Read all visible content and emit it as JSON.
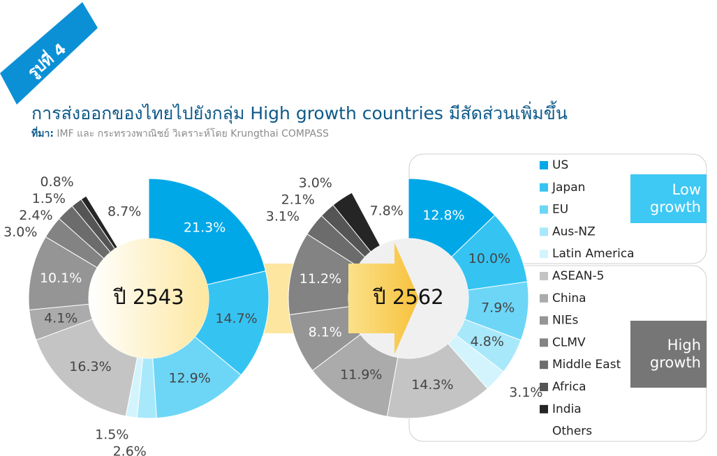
{
  "header": {
    "badge": "รูปที่ 4",
    "title": "การส่งออกของไทยไปยังกลุ่ม High growth countries มีสัดส่วนเพิ่มขึ้น",
    "source_label": "ที่มา:",
    "source": "IMF และ กระทรวงพาณิชย์ วิเคราะห์โดย Krungthai COMPASS"
  },
  "chart_data": [
    {
      "type": "donut",
      "center_label": "ปี 2543",
      "categories": [
        "US",
        "Japan",
        "EU",
        "Aus-NZ",
        "Latin America",
        "ASEAN-5",
        "China",
        "NIEs",
        "CLMV",
        "Middle East",
        "Africa",
        "India",
        "Others"
      ],
      "values": [
        21.3,
        14.7,
        12.9,
        2.6,
        1.5,
        16.3,
        4.1,
        10.1,
        3.0,
        2.4,
        1.5,
        0.8,
        8.7
      ],
      "value_labels": [
        "21.3%",
        "14.7%",
        "12.9%",
        "2.6%",
        "1.5%",
        "16.3%",
        "4.1%",
        "10.1%",
        "3.0%",
        "2.4%",
        "1.5%",
        "0.8%",
        "8.7%"
      ],
      "colors": [
        "#00a8e8",
        "#35c4f2",
        "#6dd6f7",
        "#a8e8fb",
        "#d3f4fd",
        "#c4c4c4",
        "#ababab",
        "#959595",
        "#838383",
        "#6c6c6c",
        "#555555",
        "#252525",
        "#ffffff"
      ]
    },
    {
      "type": "donut",
      "center_label": "ปี 2562",
      "categories": [
        "US",
        "Japan",
        "EU",
        "Aus-NZ",
        "Latin America",
        "ASEAN-5",
        "China",
        "NIEs",
        "CLMV",
        "Middle East",
        "Africa",
        "India",
        "Others"
      ],
      "values": [
        12.8,
        10.0,
        7.9,
        4.8,
        3.1,
        14.3,
        11.9,
        8.1,
        11.2,
        3.1,
        2.1,
        3.0,
        7.8
      ],
      "value_labels": [
        "12.8%",
        "10.0%",
        "7.9%",
        "4.8%",
        "3.1%",
        "14.3%",
        "11.9%",
        "8.1%",
        "11.2%",
        "3.1%",
        "2.1%",
        "3.0%",
        "7.8%"
      ],
      "colors": [
        "#00a8e8",
        "#35c4f2",
        "#6dd6f7",
        "#a8e8fb",
        "#d3f4fd",
        "#c4c4c4",
        "#ababab",
        "#959595",
        "#838383",
        "#6c6c6c",
        "#555555",
        "#252525",
        "#ffffff"
      ]
    }
  ],
  "legend_groups": [
    {
      "label": "Low growth",
      "color": "#3ec8f4"
    },
    {
      "label": "High growth",
      "color": "#767676"
    }
  ]
}
